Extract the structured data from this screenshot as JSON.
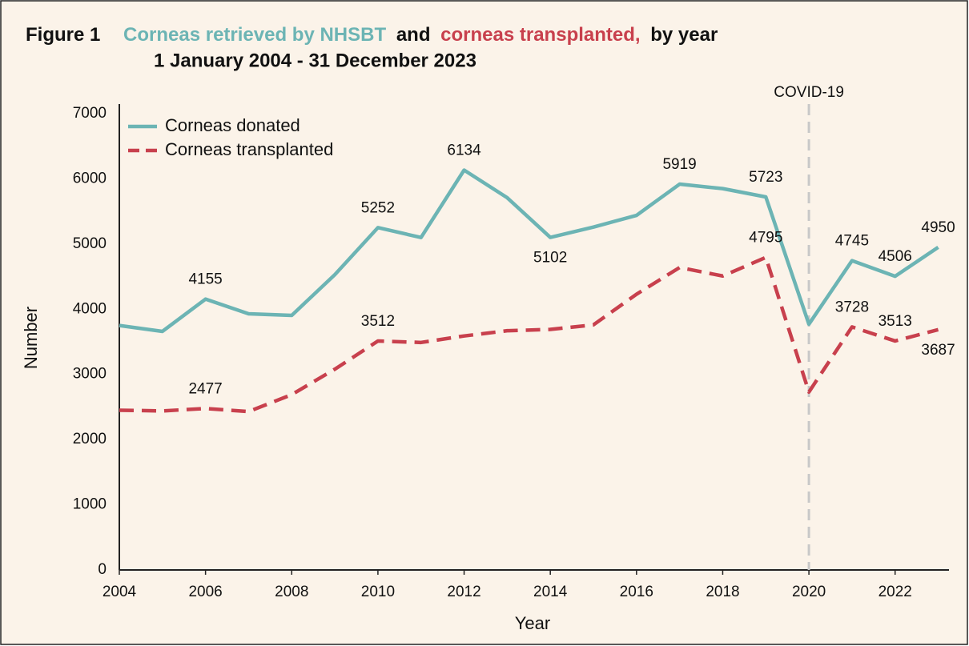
{
  "chart_data": {
    "type": "line",
    "figure_label": "Figure 1",
    "title": [
      "Corneas retrieved by NHSBT",
      "and",
      "corneas transplanted,",
      "by year"
    ],
    "subtitle": "1 January 2004 - 31 December 2023",
    "x_label": "Year",
    "y_label": "Number",
    "x": [
      2004,
      2005,
      2006,
      2007,
      2008,
      2009,
      2010,
      2011,
      2012,
      2013,
      2014,
      2015,
      2016,
      2017,
      2018,
      2019,
      2020,
      2021,
      2022,
      2023
    ],
    "series": [
      {
        "name": "Corneas donated",
        "color": "#6cb4b4",
        "dash": false,
        "values": [
          3750,
          3660,
          4155,
          3930,
          3905,
          4530,
          5252,
          5100,
          6134,
          5710,
          5102,
          5260,
          5440,
          5919,
          5850,
          5723,
          3770,
          4745,
          4506,
          4950
        ],
        "value_labels": [
          null,
          null,
          "4155",
          null,
          null,
          null,
          "5252",
          null,
          "6134",
          null,
          "5102",
          null,
          null,
          "5919",
          null,
          "5723",
          null,
          "4745",
          "4506",
          "4950"
        ]
      },
      {
        "name": "Corneas transplanted",
        "color": "#c8404d",
        "dash": true,
        "values": [
          2450,
          2440,
          2477,
          2430,
          2690,
          3080,
          3512,
          3490,
          3590,
          3670,
          3690,
          3760,
          4230,
          4640,
          4510,
          4795,
          2730,
          3728,
          3513,
          3687
        ],
        "value_labels": [
          null,
          null,
          "2477",
          null,
          null,
          null,
          "3512",
          null,
          null,
          null,
          null,
          null,
          null,
          null,
          null,
          "4795",
          null,
          "3728",
          "3513",
          "3687"
        ]
      }
    ],
    "xlim": [
      2004,
      2023.25
    ],
    "ylim": [
      0,
      7000
    ],
    "xticks": [
      2004,
      2006,
      2008,
      2010,
      2012,
      2014,
      2016,
      2018,
      2020,
      2022
    ],
    "yticks": [
      0,
      1000,
      2000,
      3000,
      4000,
      5000,
      6000,
      7000
    ],
    "grid": false,
    "legend": "upper left",
    "annotations": [
      {
        "x": 2020,
        "text": "COVID-19"
      }
    ]
  }
}
